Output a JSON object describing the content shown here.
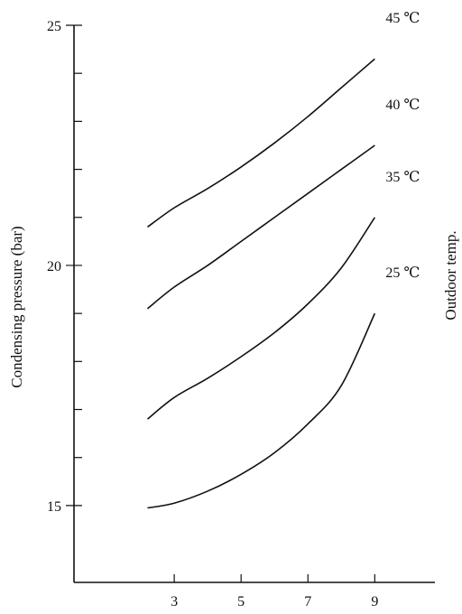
{
  "chart_data": {
    "type": "line",
    "title": "",
    "xlabel": "",
    "ylabel": "Condensing  pressure  (bar)",
    "legend_title": "Outdoor temp.",
    "xlim": [
      0.0,
      10.8
    ],
    "ylim": [
      13.4,
      25
    ],
    "x_ticks": [
      3,
      5,
      7,
      9
    ],
    "y_ticks": [
      15,
      20,
      25
    ],
    "y_minor_ticks": [
      16,
      17,
      18,
      19,
      21,
      22,
      23,
      24
    ],
    "series": [
      {
        "name": "45 ℃",
        "x": [
          2.2,
          3,
          4,
          5,
          6,
          7,
          8,
          9
        ],
        "y": [
          20.8,
          21.2,
          21.6,
          22.05,
          22.55,
          23.1,
          23.7,
          24.3
        ]
      },
      {
        "name": "40 ℃",
        "x": [
          2.2,
          3,
          4,
          5,
          6,
          7,
          8,
          9
        ],
        "y": [
          19.1,
          19.55,
          20.0,
          20.5,
          21.0,
          21.5,
          22.0,
          22.5
        ]
      },
      {
        "name": "35 ℃",
        "x": [
          2.2,
          3,
          4,
          5,
          6,
          7,
          8,
          9
        ],
        "y": [
          16.8,
          17.25,
          17.65,
          18.1,
          18.6,
          19.2,
          19.95,
          21.0
        ]
      },
      {
        "name": "25 ℃",
        "x": [
          2.2,
          3,
          4,
          5,
          6,
          7,
          8,
          9
        ],
        "y": [
          14.95,
          15.05,
          15.3,
          15.65,
          16.1,
          16.7,
          17.5,
          19.0
        ]
      }
    ],
    "grid": false,
    "legend": "right"
  }
}
